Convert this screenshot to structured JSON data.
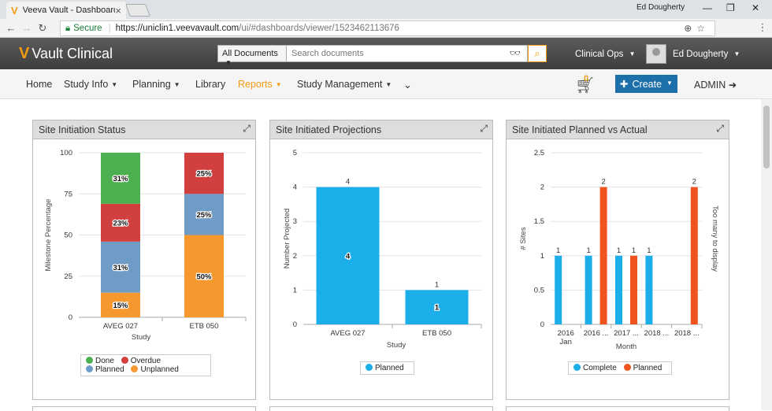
{
  "browser": {
    "tab_title": "Veeva Vault - Dashboard",
    "tab_close": "×",
    "profile_name": "Ed Dougherty",
    "secure_label": "Secure",
    "url_host": "https://uniclin1.veevavault.com",
    "url_path": "/ui/#dashboards/viewer/1523462113676"
  },
  "header": {
    "logo_text": "Vault Clinical",
    "search_scope": "All Documents",
    "search_placeholder": "Search documents",
    "vault_selector": "Clinical Ops",
    "user_name": "Ed Dougherty"
  },
  "nav": {
    "items": [
      "Home",
      "Study Info",
      "Planning",
      "Library",
      "Reports",
      "Study Management"
    ],
    "active": "Reports",
    "cart_count": "0",
    "create_label": "Create",
    "admin_label": "ADMIN"
  },
  "colors": {
    "done": "#4caf50",
    "overdue": "#d23f3f",
    "planned": "#6f9cc7",
    "unplanned": "#f7982f",
    "bar_planned": "#1caee8",
    "complete": "#1caee8",
    "planned_orange": "#f0541e",
    "accent": "#f39c12",
    "create_btn": "#1c6fa8"
  },
  "panels": [
    {
      "title": "Site Initiation Status",
      "legend": [
        "Done",
        "Overdue",
        "Planned",
        "Unplanned"
      ]
    },
    {
      "title": "Site Initiated Projections",
      "legend": [
        "Planned"
      ]
    },
    {
      "title": "Site Initiated Planned vs Actual",
      "legend": [
        "Complete",
        "Planned"
      ]
    }
  ],
  "chart_data": [
    {
      "type": "bar",
      "stacked": true,
      "title": "Site Initiation Status",
      "xlabel": "Study",
      "ylabel": "Milestone Percentage",
      "ylim": [
        0,
        100
      ],
      "yticks": [
        "0",
        "25",
        "50",
        "75",
        "100"
      ],
      "categories": [
        "AVEG 027",
        "ETB 050"
      ],
      "series": [
        {
          "name": "Unplanned",
          "values": [
            15,
            50
          ],
          "labels": [
            "15%",
            "50%"
          ]
        },
        {
          "name": "Planned",
          "values": [
            31,
            25
          ],
          "labels": [
            "31%",
            "25%"
          ]
        },
        {
          "name": "Overdue",
          "values": [
            23,
            25
          ],
          "labels": [
            "23%",
            "25%"
          ]
        },
        {
          "name": "Done",
          "values": [
            31,
            0
          ],
          "labels": [
            "31%",
            ""
          ]
        }
      ],
      "legend_position": "bottom"
    },
    {
      "type": "bar",
      "title": "Site Initiated Projections",
      "xlabel": "Study",
      "ylabel": "Number Projected",
      "ylim": [
        0,
        5
      ],
      "yticks": [
        "0",
        "1",
        "2",
        "3",
        "4",
        "5"
      ],
      "categories": [
        "AVEG 027",
        "ETB 050"
      ],
      "series": [
        {
          "name": "Planned",
          "values": [
            4,
            1
          ],
          "labels": [
            "4",
            "1"
          ]
        }
      ],
      "legend_position": "bottom"
    },
    {
      "type": "bar",
      "title": "Site Initiated Planned vs Actual",
      "xlabel": "Month",
      "ylabel": "# Sites",
      "right_label": "Too many to display",
      "ylim": [
        0,
        2.5
      ],
      "yticks": [
        "0",
        "0.5",
        "1",
        "1.5",
        "2",
        "2.5"
      ],
      "categories": [
        "2016",
        "2016 ...",
        "2017 ...",
        "2018 ...",
        "2018 ..."
      ],
      "category_sublabels": [
        "Jan",
        "",
        "",
        "",
        ""
      ],
      "series": [
        {
          "name": "Complete",
          "values": [
            1,
            1,
            1,
            1,
            0
          ],
          "labels": [
            "1",
            "1",
            "1",
            "1",
            ""
          ]
        },
        {
          "name": "Planned",
          "values": [
            0,
            2,
            1,
            0,
            2
          ],
          "labels": [
            "",
            "2",
            "1",
            "",
            "2"
          ]
        }
      ],
      "legend_position": "bottom"
    }
  ]
}
